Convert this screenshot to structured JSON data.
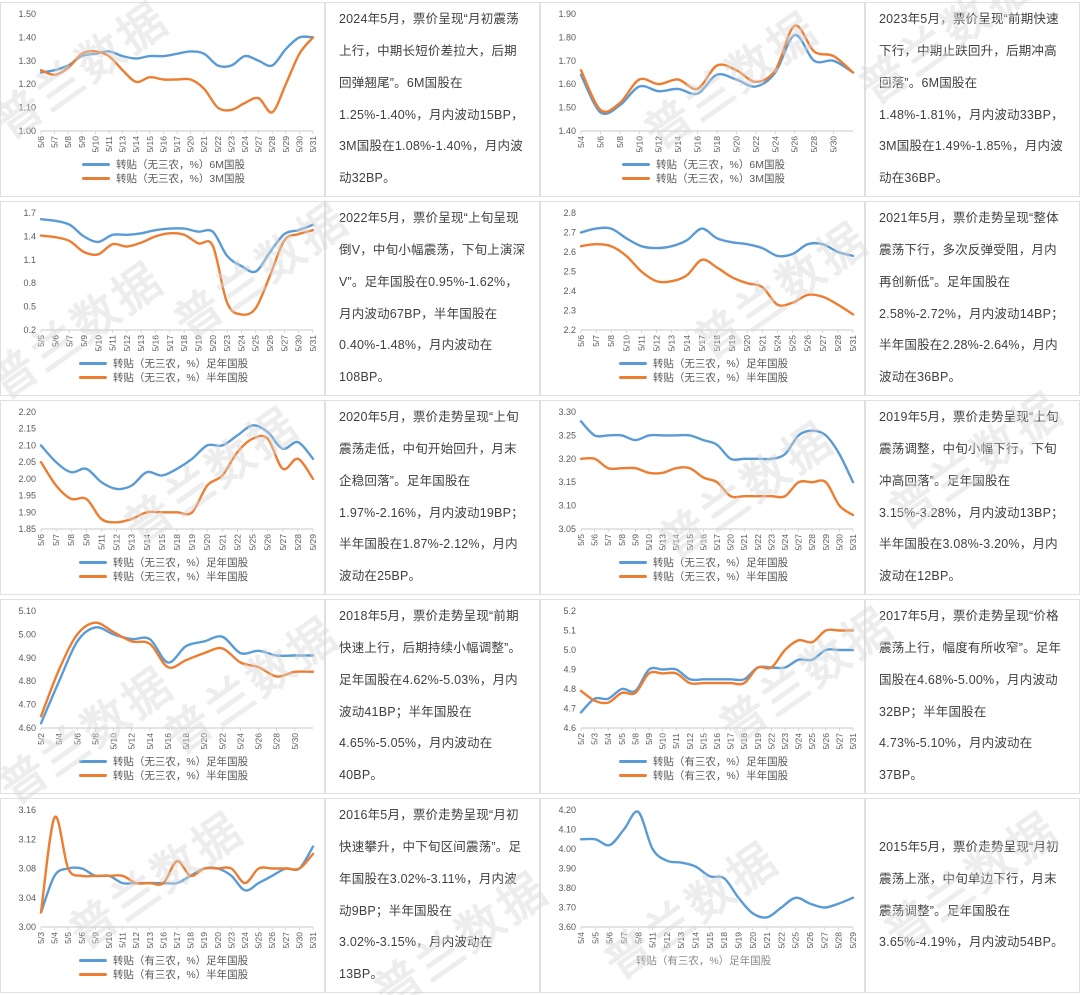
{
  "watermark": {
    "text": "普兰数据",
    "color": "#d9d9d9"
  },
  "colors": {
    "series_blue": "#5B9BD5",
    "series_orange": "#ED7D31",
    "axis": "#c9c9c9",
    "tick_label": "#595959",
    "body_text": "#3f3f3f"
  },
  "panels": [
    {
      "description": "2024年5月，票价呈现“月初震荡上行，中期长短价差拉大，后期回弹翘尾”。6M国股在1.25%-1.40%，月内波动15BP，3M国股在1.08%-1.40%，月内波动32BP。"
    },
    {
      "description": "2023年5月，票价呈现“前期快速下行，中期止跌回升，后期冲高回落”。6M国股在1.48%-1.81%，月内波动33BP，3M国股在1.49%-1.85%，月内波动在36BP。"
    },
    {
      "description": "2022年5月，票价呈现“上旬呈现倒V，中旬小幅震荡，下旬上演深V”。足年国股在0.95%-1.62%，月内波动67BP，半年国股在0.40%-1.48%，月内波动在108BP。"
    },
    {
      "description": "2021年5月，票价走势呈现“整体震荡下行，多次反弹受阻，月内再创新低”。足年国股在2.58%-2.72%，月内波动14BP；半年国股在2.28%-2.64%，月内波动在36BP。"
    },
    {
      "description": "2020年5月，票价走势呈现“上旬震荡走低，中旬开始回升，月末企稳回落”。足年国股在1.97%-2.16%，月内波动19BP；半年国股在1.87%-2.12%，月内波动在25BP。"
    },
    {
      "description": "2019年5月，票价走势呈现“上旬震荡调整，中旬小幅下行，下旬冲高回落”。足年国股在3.15%-3.28%，月内波动13BP；半年国股在3.08%-3.20%，月内波动在12BP。"
    },
    {
      "description": "2018年5月，票价走势呈现“前期快速上行，后期持续小幅调整”。足年国股在4.62%-5.03%，月内波动41BP；半年国股在4.65%-5.05%，月内波动在40BP。"
    },
    {
      "description": "2017年5月，票价走势呈现“价格震荡上行，幅度有所收窄”。足年国股在4.68%-5.00%，月内波动32BP；半年国股在4.73%-5.10%，月内波动在37BP。"
    },
    {
      "description": "2016年5月，票价走势呈现“月初快速攀升，中下旬区间震荡”。足年国股在3.02%-3.11%，月内波动9BP；半年国股在3.02%-3.15%，月内波动在13BP。"
    },
    {
      "description": "2015年5月，票价走势呈现“月初震荡上涨，中旬单边下行，月末震荡调整”。足年国股在3.65%-4.19%，月内波动54BP。"
    }
  ],
  "chart_data": [
    {
      "type": "line",
      "title": "2024年5月",
      "ylim": [
        1.0,
        1.5
      ],
      "ystep": 0.1,
      "y_decimals": 2,
      "grid": false,
      "legend_position": "bottom",
      "legend_style": "lines",
      "x_labels": [
        "5/6",
        "5/7",
        "5/8",
        "5/9",
        "5/10",
        "5/11",
        "5/13",
        "5/14",
        "5/15",
        "5/16",
        "5/17",
        "5/20",
        "5/21",
        "5/22",
        "5/23",
        "5/24",
        "5/27",
        "5/28",
        "5/29",
        "5/30",
        "5/31"
      ],
      "series": [
        {
          "name": "转贴（无三农，%）6M国股",
          "color": "#5B9BD5",
          "values": [
            1.25,
            1.26,
            1.28,
            1.32,
            1.33,
            1.34,
            1.32,
            1.31,
            1.32,
            1.32,
            1.33,
            1.34,
            1.33,
            1.28,
            1.28,
            1.32,
            1.3,
            1.28,
            1.35,
            1.4,
            1.4
          ]
        },
        {
          "name": "转贴（无三农，%）3M国股",
          "color": "#ED7D31",
          "values": [
            1.26,
            1.24,
            1.27,
            1.33,
            1.34,
            1.32,
            1.26,
            1.21,
            1.23,
            1.22,
            1.22,
            1.22,
            1.18,
            1.1,
            1.09,
            1.12,
            1.14,
            1.08,
            1.2,
            1.33,
            1.4
          ]
        }
      ]
    },
    {
      "type": "line",
      "title": "2023年5月",
      "ylim": [
        1.4,
        1.9
      ],
      "ystep": 0.1,
      "y_decimals": 2,
      "grid": false,
      "legend_position": "bottom",
      "legend_style": "lines",
      "x_labels": [
        "5/4",
        "5/6",
        "5/8",
        "5/10",
        "5/12",
        "5/14",
        "5/16",
        "5/18",
        "5/20",
        "5/22",
        "5/24",
        "5/26",
        "5/28",
        "5/30",
        ""
      ],
      "series": [
        {
          "name": "转贴（无三农，%）6M国股",
          "color": "#5B9BD5",
          "values": [
            1.64,
            1.48,
            1.51,
            1.59,
            1.57,
            1.58,
            1.56,
            1.64,
            1.62,
            1.59,
            1.65,
            1.81,
            1.7,
            1.7,
            1.65
          ]
        },
        {
          "name": "转贴（无三农，%）3M国股",
          "color": "#ED7D31",
          "values": [
            1.66,
            1.49,
            1.52,
            1.62,
            1.6,
            1.62,
            1.58,
            1.68,
            1.66,
            1.61,
            1.66,
            1.85,
            1.74,
            1.72,
            1.65
          ]
        }
      ]
    },
    {
      "type": "line",
      "title": "2022年5月",
      "ylim": [
        0.2,
        1.7
      ],
      "ystep": 0.3,
      "y_decimals": 1,
      "grid": false,
      "legend_position": "bottom",
      "legend_style": "lines",
      "x_labels": [
        "5/5",
        "5/6",
        "5/7",
        "5/9",
        "5/10",
        "5/11",
        "5/12",
        "5/13",
        "5/16",
        "5/17",
        "5/18",
        "5/19",
        "5/20",
        "5/23",
        "5/24",
        "5/25",
        "5/26",
        "5/27",
        "5/30",
        "5/31"
      ],
      "series": [
        {
          "name": "转贴（无三农，%）足年国股",
          "color": "#5B9BD5",
          "values": [
            1.62,
            1.6,
            1.55,
            1.4,
            1.33,
            1.42,
            1.42,
            1.44,
            1.48,
            1.5,
            1.5,
            1.46,
            1.46,
            1.15,
            1.02,
            0.95,
            1.2,
            1.43,
            1.48,
            1.55
          ]
        },
        {
          "name": "转贴（无三农，%）半年国股",
          "color": "#ED7D31",
          "values": [
            1.41,
            1.39,
            1.34,
            1.2,
            1.17,
            1.3,
            1.27,
            1.32,
            1.4,
            1.44,
            1.42,
            1.31,
            1.28,
            0.55,
            0.4,
            0.48,
            0.9,
            1.35,
            1.43,
            1.48
          ]
        }
      ]
    },
    {
      "type": "line",
      "title": "2021年5月",
      "ylim": [
        2.2,
        2.8
      ],
      "ystep": 0.1,
      "y_decimals": 1,
      "grid": false,
      "legend_position": "bottom",
      "legend_style": "lines",
      "x_labels": [
        "5/6",
        "5/7",
        "5/8",
        "5/10",
        "5/11",
        "5/12",
        "5/13",
        "5/14",
        "5/17",
        "5/18",
        "5/19",
        "5/20",
        "5/21",
        "5/24",
        "5/25",
        "5/26",
        "5/27",
        "5/28",
        "5/31"
      ],
      "series": [
        {
          "name": "转贴（无三农，%）足年国股",
          "color": "#5B9BD5",
          "values": [
            2.7,
            2.72,
            2.72,
            2.67,
            2.63,
            2.62,
            2.63,
            2.66,
            2.72,
            2.67,
            2.65,
            2.64,
            2.62,
            2.58,
            2.59,
            2.64,
            2.64,
            2.6,
            2.58
          ]
        },
        {
          "name": "转贴（无三农，%）半年国股",
          "color": "#ED7D31",
          "values": [
            2.63,
            2.64,
            2.63,
            2.58,
            2.5,
            2.45,
            2.45,
            2.48,
            2.56,
            2.52,
            2.47,
            2.44,
            2.42,
            2.33,
            2.34,
            2.38,
            2.37,
            2.33,
            2.28
          ]
        }
      ]
    },
    {
      "type": "line",
      "title": "2020年5月",
      "ylim": [
        1.85,
        2.2
      ],
      "ystep": 0.05,
      "y_decimals": 2,
      "grid": false,
      "legend_position": "bottom",
      "legend_style": "lines",
      "x_labels": [
        "5/6",
        "5/7",
        "5/8",
        "5/9",
        "5/11",
        "5/12",
        "5/13",
        "5/14",
        "5/15",
        "5/18",
        "5/19",
        "5/20",
        "5/21",
        "5/22",
        "5/25",
        "5/26",
        "5/27",
        "5/28",
        "5/29"
      ],
      "series": [
        {
          "name": "转贴（无三农，%）足年国股",
          "color": "#5B9BD5",
          "values": [
            2.1,
            2.05,
            2.02,
            2.03,
            1.99,
            1.97,
            1.98,
            2.02,
            2.01,
            2.03,
            2.06,
            2.1,
            2.1,
            2.13,
            2.16,
            2.14,
            2.09,
            2.11,
            2.06
          ]
        },
        {
          "name": "转贴（无三农，%）半年国股",
          "color": "#ED7D31",
          "values": [
            2.05,
            1.98,
            1.94,
            1.94,
            1.88,
            1.87,
            1.88,
            1.9,
            1.9,
            1.9,
            1.9,
            1.98,
            2.01,
            2.08,
            2.12,
            2.12,
            2.03,
            2.06,
            2.0
          ]
        }
      ]
    },
    {
      "type": "line",
      "title": "2019年5月",
      "ylim": [
        3.05,
        3.3
      ],
      "ystep": 0.05,
      "y_decimals": 2,
      "grid": false,
      "legend_position": "bottom",
      "legend_style": "lines",
      "x_labels": [
        "5/5",
        "5/6",
        "5/7",
        "5/8",
        "5/9",
        "5/10",
        "5/13",
        "5/14",
        "5/15",
        "5/16",
        "5/17",
        "5/20",
        "5/21",
        "5/22",
        "5/23",
        "5/24",
        "5/27",
        "5/28",
        "5/29",
        "5/30",
        "5/31"
      ],
      "series": [
        {
          "name": "转贴（无三农，%）足年国股",
          "color": "#5B9BD5",
          "values": [
            3.28,
            3.25,
            3.25,
            3.25,
            3.24,
            3.25,
            3.25,
            3.25,
            3.25,
            3.24,
            3.23,
            3.2,
            3.2,
            3.2,
            3.2,
            3.21,
            3.25,
            3.26,
            3.25,
            3.21,
            3.15
          ]
        },
        {
          "name": "转贴（无三农，%）半年国股",
          "color": "#ED7D31",
          "values": [
            3.2,
            3.2,
            3.18,
            3.18,
            3.18,
            3.17,
            3.17,
            3.18,
            3.18,
            3.16,
            3.15,
            3.12,
            3.12,
            3.12,
            3.12,
            3.12,
            3.15,
            3.15,
            3.15,
            3.1,
            3.08
          ]
        }
      ]
    },
    {
      "type": "line",
      "title": "2018年5月",
      "ylim": [
        4.6,
        5.1
      ],
      "ystep": 0.1,
      "y_decimals": 2,
      "grid": false,
      "legend_position": "bottom",
      "legend_style": "lines",
      "x_labels": [
        "5/2",
        "5/4",
        "5/6",
        "5/8",
        "5/10",
        "5/12",
        "5/14",
        "5/16",
        "5/18",
        "5/20",
        "5/22",
        "5/24",
        "5/26",
        "5/28",
        "5/30",
        ""
      ],
      "series": [
        {
          "name": "转贴（无三农，%）足年国股",
          "color": "#5B9BD5",
          "values": [
            4.62,
            4.8,
            4.97,
            5.03,
            5.0,
            4.98,
            4.98,
            4.88,
            4.95,
            4.97,
            4.99,
            4.92,
            4.93,
            4.91,
            4.91,
            4.91
          ]
        },
        {
          "name": "转贴（无三农，%）半年国股",
          "color": "#ED7D31",
          "values": [
            4.65,
            4.85,
            5.0,
            5.05,
            5.01,
            4.97,
            4.96,
            4.86,
            4.89,
            4.92,
            4.94,
            4.88,
            4.86,
            4.82,
            4.84,
            4.84
          ]
        }
      ]
    },
    {
      "type": "line",
      "title": "2017年5月",
      "ylim": [
        4.6,
        5.2
      ],
      "ystep": 0.1,
      "y_decimals": 1,
      "grid": false,
      "legend_position": "bottom",
      "legend_style": "lines",
      "x_labels": [
        "5/2",
        "5/3",
        "5/4",
        "5/5",
        "5/8",
        "5/9",
        "5/10",
        "5/11",
        "5/12",
        "5/15",
        "5/16",
        "5/17",
        "5/18",
        "5/19",
        "5/22",
        "5/23",
        "5/24",
        "5/25",
        "5/26",
        "5/27",
        "5/31"
      ],
      "series": [
        {
          "name": "转贴（有三农，%）足年国股",
          "color": "#5B9BD5",
          "values": [
            4.68,
            4.75,
            4.75,
            4.8,
            4.79,
            4.9,
            4.9,
            4.9,
            4.85,
            4.85,
            4.85,
            4.85,
            4.85,
            4.91,
            4.91,
            4.91,
            4.95,
            4.95,
            5.0,
            5.0,
            5.0
          ]
        },
        {
          "name": "转贴（有三农，%）半年国股",
          "color": "#ED7D31",
          "values": [
            4.79,
            4.74,
            4.73,
            4.78,
            4.78,
            4.88,
            4.88,
            4.88,
            4.83,
            4.83,
            4.83,
            4.83,
            4.83,
            4.91,
            4.91,
            5.0,
            5.05,
            5.04,
            5.1,
            5.1,
            5.1
          ]
        }
      ]
    },
    {
      "type": "line",
      "title": "2016年5月",
      "ylim": [
        3.0,
        3.16
      ],
      "ystep": 0.04,
      "y_decimals": 2,
      "grid": false,
      "legend_position": "bottom",
      "legend_style": "lines",
      "x_labels": [
        "5/3",
        "5/4",
        "5/5",
        "5/6",
        "5/9",
        "5/10",
        "5/11",
        "5/12",
        "5/13",
        "5/16",
        "5/17",
        "5/18",
        "5/19",
        "5/20",
        "5/23",
        "5/24",
        "5/25",
        "5/26",
        "5/27",
        "5/30",
        "5/31"
      ],
      "series": [
        {
          "name": "转贴（有三农，%）足年国股",
          "color": "#5B9BD5",
          "values": [
            3.02,
            3.07,
            3.08,
            3.08,
            3.07,
            3.07,
            3.06,
            3.06,
            3.06,
            3.06,
            3.06,
            3.07,
            3.08,
            3.08,
            3.07,
            3.05,
            3.06,
            3.07,
            3.08,
            3.08,
            3.11
          ]
        },
        {
          "name": "转贴（有三农，%）半年国股",
          "color": "#ED7D31",
          "values": [
            3.02,
            3.15,
            3.08,
            3.07,
            3.07,
            3.07,
            3.07,
            3.06,
            3.06,
            3.06,
            3.09,
            3.07,
            3.08,
            3.08,
            3.08,
            3.06,
            3.08,
            3.08,
            3.08,
            3.08,
            3.1
          ]
        }
      ]
    },
    {
      "type": "line",
      "title": "2015年5月",
      "ylim": [
        3.6,
        4.2
      ],
      "ystep": 0.1,
      "y_decimals": 2,
      "grid": false,
      "legend_position": "bottom",
      "legend_style": "caption",
      "x_labels": [
        "5/4",
        "5/5",
        "5/6",
        "5/7",
        "5/8",
        "5/11",
        "5/12",
        "5/13",
        "5/14",
        "5/15",
        "5/18",
        "5/19",
        "5/20",
        "5/21",
        "5/22",
        "5/25",
        "5/26",
        "5/27",
        "5/28",
        "5/29"
      ],
      "series": [
        {
          "name": "转贴（有三农，%）足年国股",
          "color": "#5B9BD5",
          "values": [
            4.05,
            4.05,
            4.02,
            4.1,
            4.19,
            4.0,
            3.94,
            3.93,
            3.91,
            3.86,
            3.85,
            3.75,
            3.67,
            3.65,
            3.7,
            3.75,
            3.72,
            3.7,
            3.72,
            3.75
          ]
        }
      ]
    }
  ]
}
